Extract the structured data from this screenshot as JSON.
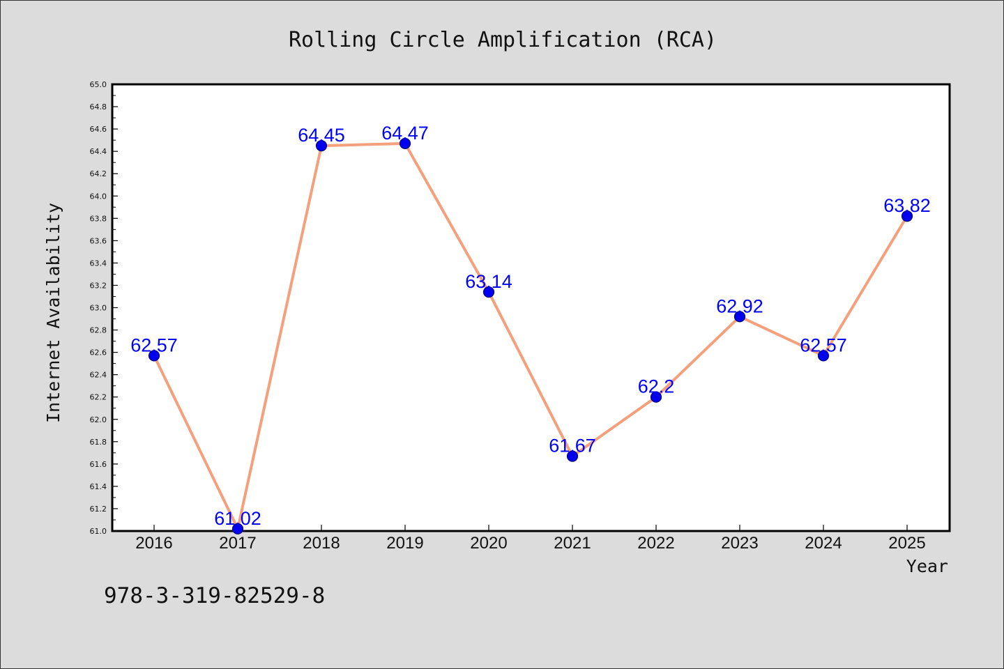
{
  "chart_data": {
    "type": "line",
    "title": "Rolling Circle Amplification (RCA)",
    "xlabel": "Year",
    "ylabel": "Internet Availability",
    "categories": [
      "2016",
      "2017",
      "2018",
      "2019",
      "2020",
      "2021",
      "2022",
      "2023",
      "2024",
      "2025"
    ],
    "series": [
      {
        "values": [
          62.57,
          61.02,
          64.45,
          64.47,
          63.14,
          61.67,
          62.2,
          62.92,
          62.57,
          63.82
        ],
        "labels": [
          "62.57",
          "61.02",
          "64.45",
          "64.47",
          "63.14",
          "61.67",
          "62.2",
          "62.92",
          "62.57",
          "63.82"
        ]
      }
    ],
    "ylim": [
      61.0,
      65.0
    ],
    "yticks": [
      "61.0",
      "61.2",
      "61.4",
      "61.6",
      "61.8",
      "62.0",
      "62.2",
      "62.4",
      "62.6",
      "62.8",
      "63.0",
      "63.2",
      "63.4",
      "63.6",
      "63.8",
      "64.0",
      "64.2",
      "64.4",
      "64.6",
      "64.8",
      "65.0"
    ],
    "grid": false,
    "legend": "none",
    "colors": {
      "line": "#f4a07c",
      "marker": "#0000ee",
      "marker_edge": "#000080",
      "data_label": "#0000ff",
      "background": "#dcdcdc",
      "plot_background": "#ffffff"
    }
  },
  "annotation": "978-3-319-82529-8"
}
